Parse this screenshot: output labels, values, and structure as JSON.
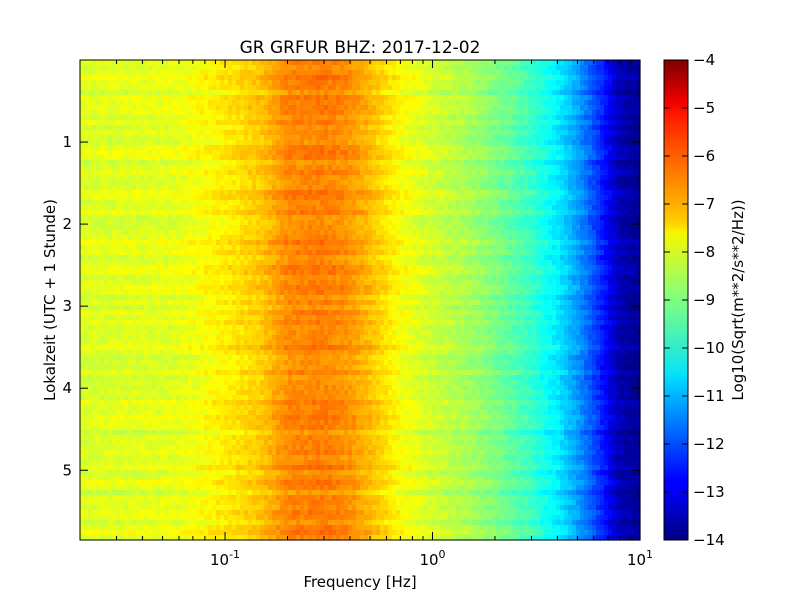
{
  "chart_data": {
    "type": "heatmap",
    "title": "GR GRFUR BHZ: 2017-12-02",
    "xlabel": "Frequency [Hz]",
    "ylabel": "Lokalzeit (UTC + 1 Stunde)",
    "x_scale": "log",
    "xlim": [
      0.02,
      10
    ],
    "ylim": [
      5.85,
      0
    ],
    "x_ticks": [
      {
        "value": 0.1,
        "base": "10",
        "exp": "-1"
      },
      {
        "value": 1,
        "base": "10",
        "exp": "0"
      },
      {
        "value": 10,
        "base": "10",
        "exp": "1"
      }
    ],
    "y_ticks": [
      {
        "value": 1,
        "label": "1"
      },
      {
        "value": 2,
        "label": "2"
      },
      {
        "value": 3,
        "label": "3"
      },
      {
        "value": 4,
        "label": "4"
      },
      {
        "value": 5,
        "label": "5"
      }
    ],
    "colormap": "jet",
    "colorbar": {
      "label": "Log10(Sqrt(m**2/s**2/Hz))",
      "range": [
        -14,
        -4
      ],
      "ticks": [
        {
          "value": -4,
          "label": "−4"
        },
        {
          "value": -5,
          "label": "−5"
        },
        {
          "value": -6,
          "label": "−6"
        },
        {
          "value": -7,
          "label": "−7"
        },
        {
          "value": -8,
          "label": "−8"
        },
        {
          "value": -9,
          "label": "−9"
        },
        {
          "value": -10,
          "label": "−10"
        },
        {
          "value": -11,
          "label": "−11"
        },
        {
          "value": -12,
          "label": "−12"
        },
        {
          "value": -13,
          "label": "−13"
        },
        {
          "value": -14,
          "label": "−14"
        }
      ]
    },
    "spectrum_profile": {
      "frequency_hz": [
        0.02,
        0.06,
        0.1,
        0.15,
        0.2,
        0.3,
        0.4,
        0.5,
        0.7,
        1.0,
        1.5,
        2.0,
        3.0,
        4.0,
        5.0,
        6.0,
        7.0,
        8.0,
        10.0
      ],
      "level": [
        -8.1,
        -8.0,
        -7.6,
        -7.2,
        -6.6,
        -6.5,
        -6.7,
        -7.1,
        -7.8,
        -8.2,
        -8.6,
        -9.0,
        -9.7,
        -10.4,
        -11.2,
        -12.0,
        -12.8,
        -13.5,
        -13.8
      ]
    }
  }
}
